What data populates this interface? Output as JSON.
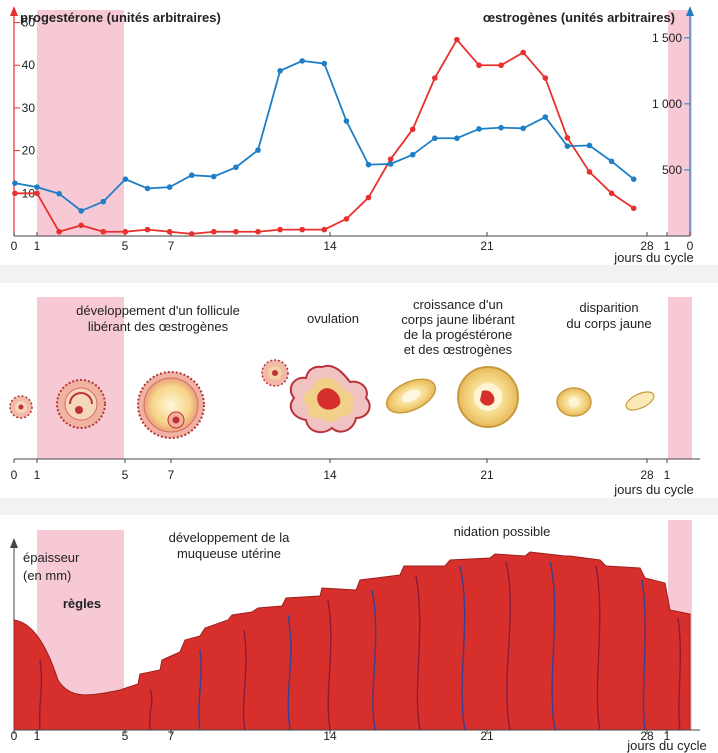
{
  "colors": {
    "progesterone": "#e8302f",
    "oestrogenes": "#1f7fc6",
    "menses_band": "#f7c9d5",
    "panel_bg": "#ffffff",
    "muqueuse": "#d7302c",
    "regles_text": "#d6348e"
  },
  "chart_data": {
    "type": "line",
    "xlabel": "jours du cycle",
    "x_ticks": [
      "0",
      "1",
      "5",
      "7",
      "14",
      "21",
      "28",
      "1",
      "0"
    ],
    "left_axis": {
      "label": "progestérone (unités arbitraires)",
      "ticks": [
        10,
        20,
        30,
        40,
        50
      ],
      "range": [
        0,
        52
      ]
    },
    "right_axis": {
      "label": "œstrogènes (unités arbitraires)",
      "ticks": [
        "500",
        "1 000",
        "1 500"
      ],
      "range": [
        0,
        1680
      ]
    },
    "series": [
      {
        "name": "progestérone",
        "axis": "left",
        "x": [
          0,
          1,
          2,
          3,
          4,
          5,
          6,
          7,
          8,
          9,
          10,
          11,
          12,
          13,
          14,
          15,
          16,
          17,
          18,
          19,
          20,
          21,
          22,
          23,
          24,
          25,
          26,
          27,
          28
        ],
        "values": [
          10,
          10,
          1,
          2.5,
          1,
          1,
          1.5,
          1,
          0.5,
          1,
          1,
          1,
          1.5,
          1.5,
          1.5,
          4,
          9,
          18,
          25,
          37,
          46,
          40,
          40,
          43,
          37,
          23,
          15,
          10,
          6.5
        ]
      },
      {
        "name": "œstrogènes",
        "axis": "right",
        "x": [
          0,
          1,
          2,
          3,
          4,
          5,
          6,
          7,
          8,
          9,
          10,
          11,
          12,
          13,
          14,
          15,
          16,
          17,
          18,
          19,
          20,
          21,
          22,
          23,
          24,
          25,
          26,
          27,
          28
        ],
        "values": [
          400,
          370,
          320,
          190,
          260,
          430,
          360,
          370,
          460,
          450,
          520,
          650,
          1250,
          1325,
          1305,
          870,
          540,
          545,
          615,
          740,
          740,
          810,
          820,
          815,
          900,
          680,
          685,
          565,
          430
        ]
      }
    ]
  },
  "ovary_panel": {
    "labels": [
      "développement d'un follicule",
      "libérant des œstrogènes",
      "ovulation",
      "croissance d'un",
      "corps jaune libérant",
      "de la progéstérone",
      "et des œstrogènes",
      "disparition",
      "du corps jaune"
    ],
    "x_ticks": [
      "0",
      "1",
      "5",
      "7",
      "14",
      "21",
      "28",
      "1"
    ],
    "xlabel": "jours du cycle"
  },
  "uterus_panel": {
    "labels": [
      "développement de la",
      "muqueuse utérine",
      "nidation possible"
    ],
    "ylabel": [
      "épaisseur",
      "(en mm)"
    ],
    "regles": "règles",
    "x_ticks": [
      "0",
      "1",
      "5",
      "7",
      "14",
      "21",
      "28",
      "1"
    ],
    "xlabel": "jours du cycle"
  }
}
